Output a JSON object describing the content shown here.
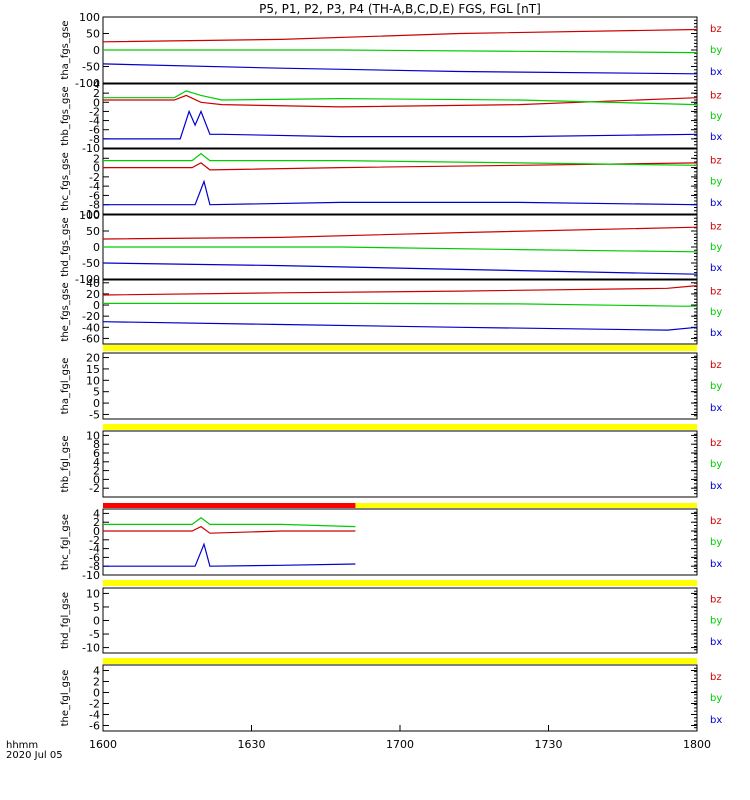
{
  "chart_data": {
    "type": "line",
    "title": "P5, P1, P2, P3, P4 (TH-A,B,C,D,E) FGS, FGL [nT]",
    "x_axis": {
      "range": [
        "1600",
        "1800"
      ],
      "ticks": [
        "1600",
        "1630",
        "1700",
        "1730",
        "1800"
      ],
      "label_line1": "hhmm",
      "label_line2": "2020 Jul 05"
    },
    "legend_labels": [
      "bz",
      "by",
      "bx"
    ],
    "colors": {
      "bz": "#cc0000",
      "by": "#00cc00",
      "bx": "#0000cc",
      "bar_yellow": "#ffff00",
      "bar_red": "#ff0000"
    },
    "panels": [
      {
        "name": "tha_fgs_gse",
        "ylim": [
          -100,
          100
        ],
        "ticks": [
          "100",
          "50",
          "0",
          "-50",
          "-100"
        ],
        "series": [
          {
            "name": "bz",
            "points": [
              [
                0,
                25
              ],
              [
                60,
                32
              ],
              [
                120,
                50
              ],
              [
                200,
                62
              ]
            ]
          },
          {
            "name": "by",
            "points": [
              [
                0,
                0
              ],
              [
                80,
                0
              ],
              [
                140,
                -4
              ],
              [
                200,
                -8
              ]
            ]
          },
          {
            "name": "bx",
            "points": [
              [
                0,
                -42
              ],
              [
                60,
                -55
              ],
              [
                120,
                -65
              ],
              [
                200,
                -72
              ]
            ]
          }
        ]
      },
      {
        "name": "thb_fgs_gse",
        "ylim": [
          -10,
          4
        ],
        "ticks": [
          "4",
          "2",
          "0",
          "-2",
          "-4",
          "-6",
          "-8",
          "-10"
        ],
        "series": [
          {
            "name": "bz",
            "points": [
              [
                0,
                0.5
              ],
              [
                24,
                0.5
              ],
              [
                28,
                1.5
              ],
              [
                33,
                0
              ],
              [
                40,
                -0.5
              ],
              [
                80,
                -1
              ],
              [
                140,
                -0.5
              ],
              [
                200,
                1
              ]
            ]
          },
          {
            "name": "by",
            "points": [
              [
                0,
                1
              ],
              [
                24,
                1
              ],
              [
                28,
                2.5
              ],
              [
                33,
                1.5
              ],
              [
                40,
                0.5
              ],
              [
                80,
                0.8
              ],
              [
                140,
                0.5
              ],
              [
                200,
                -0.5
              ]
            ]
          },
          {
            "name": "bx",
            "points": [
              [
                0,
                -8
              ],
              [
                26,
                -8
              ],
              [
                29,
                -2
              ],
              [
                31,
                -5
              ],
              [
                33,
                -2
              ],
              [
                36,
                -7
              ],
              [
                40,
                -7
              ],
              [
                80,
                -7.5
              ],
              [
                140,
                -7.5
              ],
              [
                200,
                -7
              ]
            ]
          }
        ]
      },
      {
        "name": "thc_fgs_gse",
        "ylim": [
          -10,
          4
        ],
        "ticks": [
          "2",
          "0",
          "-2",
          "-4",
          "-6",
          "-8",
          "-10"
        ],
        "series": [
          {
            "name": "bz",
            "points": [
              [
                0,
                0
              ],
              [
                30,
                0
              ],
              [
                33,
                1
              ],
              [
                36,
                -0.5
              ],
              [
                80,
                0
              ],
              [
                140,
                0.5
              ],
              [
                200,
                1
              ]
            ]
          },
          {
            "name": "by",
            "points": [
              [
                0,
                1.5
              ],
              [
                30,
                1.5
              ],
              [
                33,
                3
              ],
              [
                36,
                1.5
              ],
              [
                80,
                1.5
              ],
              [
                140,
                1
              ],
              [
                200,
                0.5
              ]
            ]
          },
          {
            "name": "bx",
            "points": [
              [
                0,
                -8
              ],
              [
                31,
                -8
              ],
              [
                34,
                -3
              ],
              [
                36,
                -8
              ],
              [
                80,
                -7.5
              ],
              [
                140,
                -7.5
              ],
              [
                200,
                -8
              ]
            ]
          }
        ]
      },
      {
        "name": "thd_fgs_gse",
        "ylim": [
          -100,
          100
        ],
        "ticks": [
          "100",
          "50",
          "0",
          "-50",
          "-100"
        ],
        "series": [
          {
            "name": "bz",
            "points": [
              [
                0,
                25
              ],
              [
                60,
                30
              ],
              [
                120,
                45
              ],
              [
                200,
                62
              ]
            ]
          },
          {
            "name": "by",
            "points": [
              [
                0,
                0
              ],
              [
                80,
                0
              ],
              [
                140,
                -8
              ],
              [
                200,
                -15
              ]
            ]
          },
          {
            "name": "bx",
            "points": [
              [
                0,
                -50
              ],
              [
                60,
                -58
              ],
              [
                120,
                -70
              ],
              [
                200,
                -85
              ]
            ]
          }
        ]
      },
      {
        "name": "the_fgs_gse",
        "ylim": [
          -70,
          45
        ],
        "ticks": [
          "40",
          "20",
          "0",
          "-20",
          "-40",
          "-60"
        ],
        "series": [
          {
            "name": "bz",
            "points": [
              [
                0,
                18
              ],
              [
                60,
                22
              ],
              [
                120,
                25
              ],
              [
                190,
                30
              ],
              [
                200,
                35
              ]
            ]
          },
          {
            "name": "by",
            "points": [
              [
                0,
                3
              ],
              [
                80,
                3
              ],
              [
                140,
                2
              ],
              [
                195,
                -2
              ],
              [
                200,
                -2
              ]
            ]
          },
          {
            "name": "bx",
            "points": [
              [
                0,
                -30
              ],
              [
                60,
                -35
              ],
              [
                120,
                -40
              ],
              [
                190,
                -45
              ],
              [
                200,
                -40
              ]
            ]
          }
        ]
      },
      {
        "name": "tha_fgl_gse",
        "ylim": [
          -7,
          22
        ],
        "ticks": [
          "20",
          "15",
          "10",
          "5",
          "0",
          "-5"
        ],
        "series": []
      },
      {
        "name": "thb_fgl_gse",
        "ylim": [
          -4,
          11
        ],
        "ticks": [
          "10",
          "8",
          "6",
          "4",
          "2",
          "0",
          "-2"
        ],
        "series": []
      },
      {
        "name": "thc_fgl_gse",
        "ylim": [
          -10,
          5
        ],
        "ticks": [
          "4",
          "2",
          "0",
          "-2",
          "-4",
          "-6",
          "-8",
          "-10"
        ],
        "series": [
          {
            "name": "bz",
            "points": [
              [
                0,
                0
              ],
              [
                30,
                0
              ],
              [
                33,
                1
              ],
              [
                36,
                -0.5
              ],
              [
                60,
                0
              ],
              [
                85,
                0
              ]
            ]
          },
          {
            "name": "by",
            "points": [
              [
                0,
                1.5
              ],
              [
                30,
                1.5
              ],
              [
                33,
                3
              ],
              [
                36,
                1.5
              ],
              [
                60,
                1.5
              ],
              [
                85,
                1
              ]
            ]
          },
          {
            "name": "bx",
            "points": [
              [
                0,
                -8
              ],
              [
                31,
                -8
              ],
              [
                34,
                -3
              ],
              [
                36,
                -8
              ],
              [
                60,
                -7.8
              ],
              [
                85,
                -7.5
              ]
            ]
          }
        ]
      },
      {
        "name": "thd_fgl_gse",
        "ylim": [
          -12,
          12
        ],
        "ticks": [
          "10",
          "5",
          "0",
          "-5",
          "-10"
        ],
        "series": []
      },
      {
        "name": "the_fgl_gse",
        "ylim": [
          -7,
          5
        ],
        "ticks": [
          "4",
          "2",
          "0",
          "-2",
          "-4",
          "-6"
        ],
        "series": []
      }
    ]
  }
}
